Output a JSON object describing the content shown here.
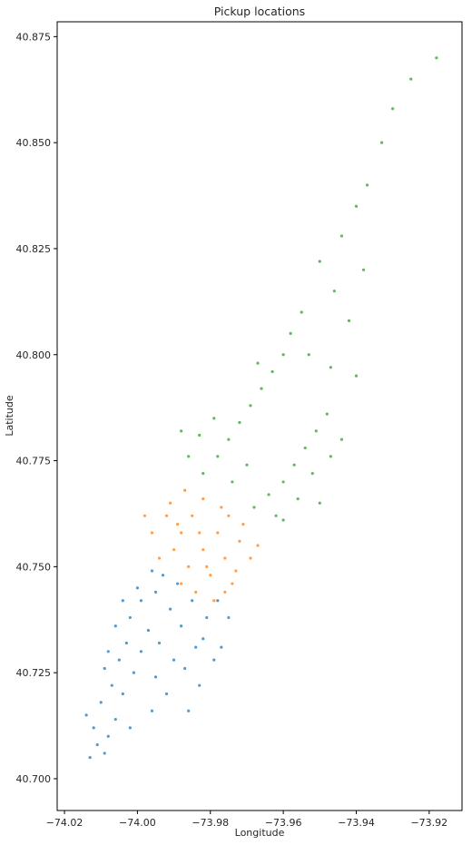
{
  "chart_data": {
    "type": "scatter",
    "title": "Pickup locations",
    "xlabel": "Longitude",
    "ylabel": "Latitude",
    "xlim": [
      -74.022,
      -73.911
    ],
    "ylim": [
      40.6925,
      40.8785
    ],
    "xticks": [
      -74.02,
      -74.0,
      -73.98,
      -73.96,
      -73.94,
      -73.92
    ],
    "xtick_labels": [
      "−74.02",
      "−74.00",
      "−73.98",
      "−73.96",
      "−73.94",
      "−73.92"
    ],
    "yticks": [
      40.7,
      40.725,
      40.75,
      40.775,
      40.8,
      40.825,
      40.85,
      40.875
    ],
    "ytick_labels": [
      "40.700",
      "40.725",
      "40.750",
      "40.775",
      "40.800",
      "40.825",
      "40.850",
      "40.875"
    ],
    "grid": false,
    "series": [
      {
        "color": "#1f77b4",
        "points": [
          [
            -74.013,
            40.705
          ],
          [
            -74.011,
            40.708
          ],
          [
            -74.009,
            40.706
          ],
          [
            -74.012,
            40.712
          ],
          [
            -74.014,
            40.715
          ],
          [
            -74.008,
            40.71
          ],
          [
            -74.006,
            40.714
          ],
          [
            -74.01,
            40.718
          ],
          [
            -74.007,
            40.722
          ],
          [
            -74.004,
            40.72
          ],
          [
            -74.009,
            40.726
          ],
          [
            -74.005,
            40.728
          ],
          [
            -74.001,
            40.725
          ],
          [
            -74.003,
            40.732
          ],
          [
            -73.999,
            40.73
          ],
          [
            -74.006,
            40.736
          ],
          [
            -74.002,
            40.738
          ],
          [
            -73.997,
            40.735
          ],
          [
            -73.994,
            40.732
          ],
          [
            -73.999,
            40.742
          ],
          [
            -73.995,
            40.744
          ],
          [
            -73.991,
            40.74
          ],
          [
            -73.988,
            40.736
          ],
          [
            -73.985,
            40.742
          ],
          [
            -73.993,
            40.748
          ],
          [
            -73.989,
            40.746
          ],
          [
            -73.984,
            40.731
          ],
          [
            -73.981,
            40.738
          ],
          [
            -73.978,
            40.742
          ],
          [
            -73.987,
            40.726
          ],
          [
            -73.983,
            40.722
          ],
          [
            -73.979,
            40.728
          ],
          [
            -73.992,
            40.72
          ],
          [
            -73.996,
            40.716
          ],
          [
            -74.002,
            40.712
          ],
          [
            -74.0,
            40.745
          ],
          [
            -73.996,
            40.749
          ],
          [
            -74.004,
            40.742
          ],
          [
            -73.975,
            40.738
          ],
          [
            -73.986,
            40.716
          ],
          [
            -73.99,
            40.728
          ],
          [
            -73.995,
            40.724
          ],
          [
            -74.008,
            40.73
          ],
          [
            -73.982,
            40.733
          ],
          [
            -73.977,
            40.731
          ]
        ]
      },
      {
        "color": "#ff7f0e",
        "points": [
          [
            -73.996,
            40.758
          ],
          [
            -73.992,
            40.762
          ],
          [
            -73.988,
            40.758
          ],
          [
            -73.985,
            40.762
          ],
          [
            -73.982,
            40.766
          ],
          [
            -73.99,
            40.754
          ],
          [
            -73.986,
            40.75
          ],
          [
            -73.982,
            40.754
          ],
          [
            -73.978,
            40.758
          ],
          [
            -73.975,
            40.762
          ],
          [
            -73.98,
            40.748
          ],
          [
            -73.976,
            40.752
          ],
          [
            -73.972,
            40.756
          ],
          [
            -73.969,
            40.752
          ],
          [
            -73.974,
            40.746
          ],
          [
            -73.984,
            40.744
          ],
          [
            -73.979,
            40.742
          ],
          [
            -73.994,
            40.752
          ],
          [
            -73.998,
            40.762
          ],
          [
            -73.987,
            40.768
          ],
          [
            -73.983,
            40.758
          ],
          [
            -73.977,
            40.764
          ],
          [
            -73.971,
            40.76
          ],
          [
            -73.967,
            40.755
          ],
          [
            -73.988,
            40.746
          ],
          [
            -73.991,
            40.765
          ],
          [
            -73.981,
            40.75
          ],
          [
            -73.973,
            40.749
          ],
          [
            -73.976,
            40.744
          ],
          [
            -73.989,
            40.76
          ]
        ]
      },
      {
        "color": "#2ca02c",
        "points": [
          [
            -73.982,
            40.772
          ],
          [
            -73.978,
            40.776
          ],
          [
            -73.975,
            40.78
          ],
          [
            -73.972,
            40.784
          ],
          [
            -73.969,
            40.788
          ],
          [
            -73.966,
            40.792
          ],
          [
            -73.963,
            40.796
          ],
          [
            -73.96,
            40.8
          ],
          [
            -73.958,
            40.805
          ],
          [
            -73.955,
            40.81
          ],
          [
            -73.986,
            40.776
          ],
          [
            -73.983,
            40.781
          ],
          [
            -73.979,
            40.785
          ],
          [
            -73.964,
            40.767
          ],
          [
            -73.96,
            40.77
          ],
          [
            -73.957,
            40.774
          ],
          [
            -73.954,
            40.778
          ],
          [
            -73.951,
            40.782
          ],
          [
            -73.948,
            40.786
          ],
          [
            -73.952,
            40.772
          ],
          [
            -73.956,
            40.766
          ],
          [
            -73.96,
            40.761
          ],
          [
            -73.947,
            40.776
          ],
          [
            -73.944,
            40.78
          ],
          [
            -73.95,
            40.765
          ],
          [
            -73.962,
            40.762
          ],
          [
            -73.968,
            40.764
          ],
          [
            -73.942,
            40.808
          ],
          [
            -73.946,
            40.815
          ],
          [
            -73.95,
            40.822
          ],
          [
            -73.944,
            40.828
          ],
          [
            -73.94,
            40.835
          ],
          [
            -73.937,
            40.84
          ],
          [
            -73.933,
            40.85
          ],
          [
            -73.93,
            40.858
          ],
          [
            -73.925,
            40.865
          ],
          [
            -73.918,
            40.87
          ],
          [
            -73.953,
            40.8
          ],
          [
            -73.947,
            40.797
          ],
          [
            -73.94,
            40.795
          ],
          [
            -73.974,
            40.77
          ],
          [
            -73.97,
            40.774
          ],
          [
            -73.988,
            40.782
          ],
          [
            -73.967,
            40.798
          ],
          [
            -73.938,
            40.82
          ]
        ]
      }
    ]
  }
}
